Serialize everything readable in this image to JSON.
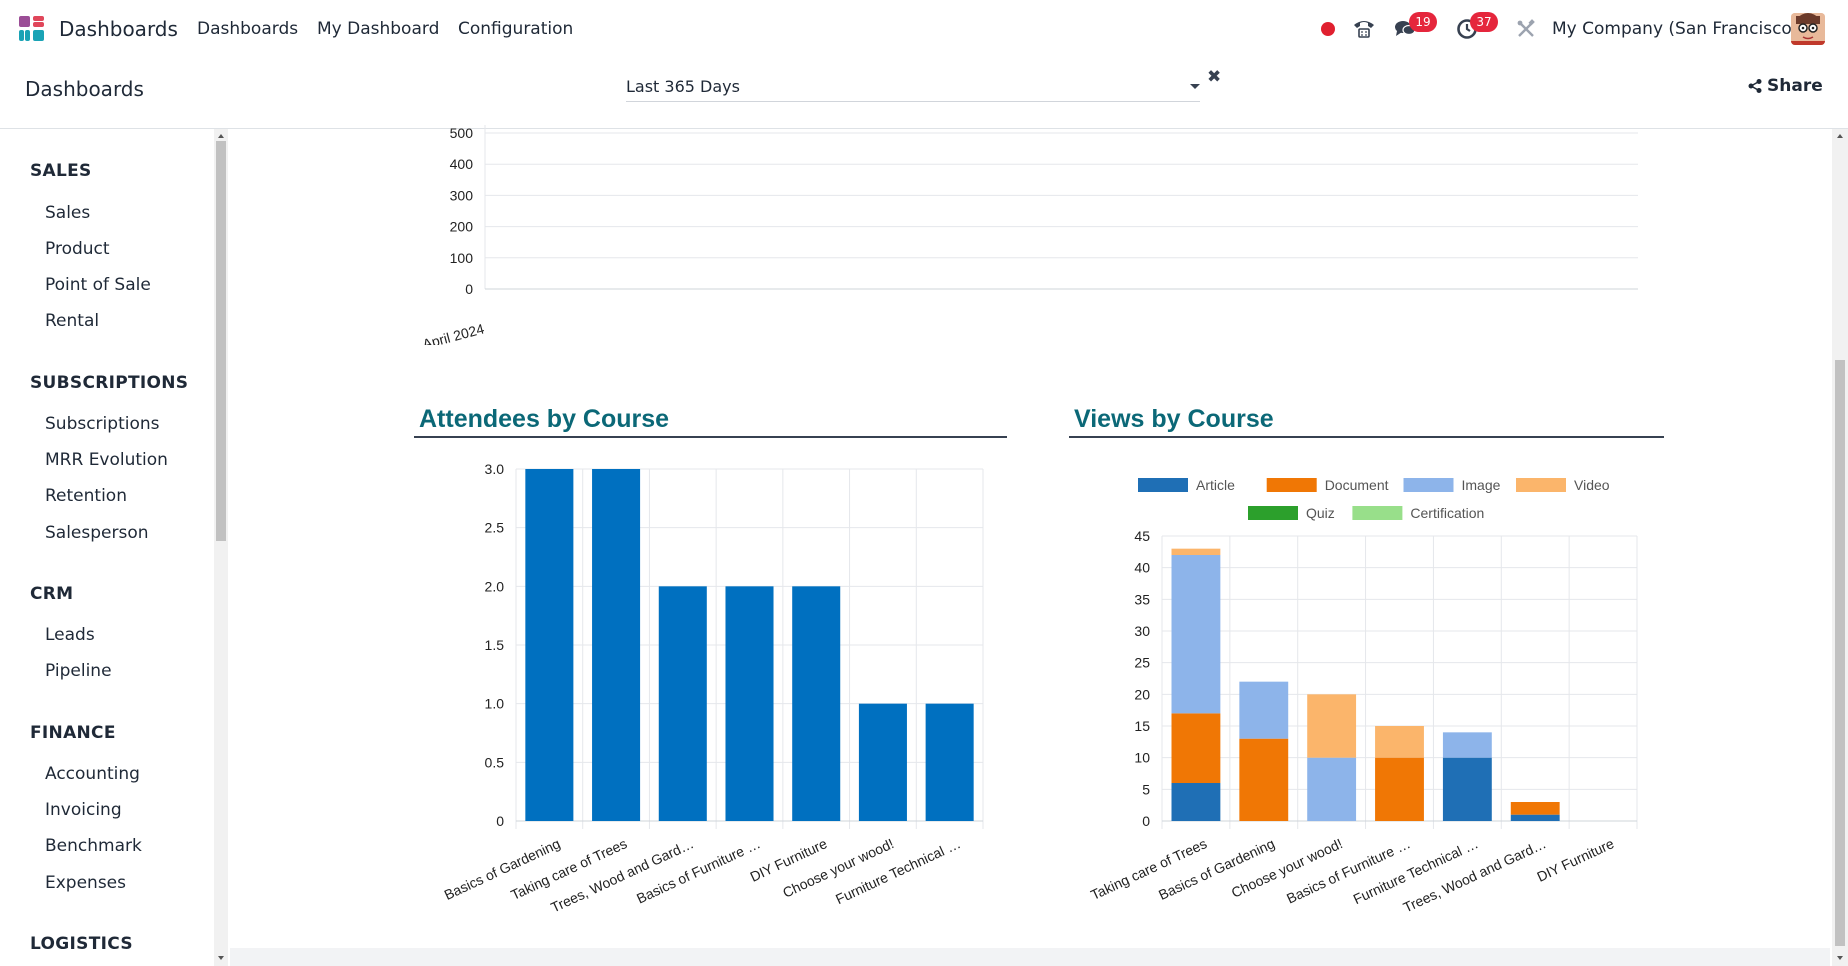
{
  "navbar": {
    "brand": "Dashboards",
    "menu": [
      "Dashboards",
      "My Dashboard",
      "Configuration"
    ],
    "messages_badge": "19",
    "activities_badge": "37",
    "company": "My Company (San Francisco)",
    "colors": {
      "badge": "#e5263c",
      "record": "#e0202f"
    }
  },
  "control_panel": {
    "title": "Dashboards",
    "filter_value": "Last 365 Days",
    "share_label": "Share"
  },
  "sidebar": {
    "sections": [
      {
        "title": "SALES",
        "items": [
          "Sales",
          "Product",
          "Point of Sale",
          "Rental"
        ]
      },
      {
        "title": "SUBSCRIPTIONS",
        "items": [
          "Subscriptions",
          "MRR Evolution",
          "Retention",
          "Salesperson"
        ]
      },
      {
        "title": "CRM",
        "items": [
          "Leads",
          "Pipeline"
        ]
      },
      {
        "title": "FINANCE",
        "items": [
          "Accounting",
          "Invoicing",
          "Benchmark",
          "Expenses"
        ]
      },
      {
        "title": "LOGISTICS",
        "items": []
      }
    ]
  },
  "chart_data": [
    {
      "type": "line",
      "title": "",
      "x": [
        "April 2024"
      ],
      "yticks": [
        "0",
        "100",
        "200",
        "300",
        "400",
        "500"
      ],
      "ylim": [
        0,
        500
      ],
      "series": [],
      "grid": true
    },
    {
      "type": "bar",
      "title": "Attendees by Course",
      "categories": [
        "Basics of Gardening",
        "Taking care of Trees",
        "Trees, Wood and Gard…",
        "Basics of Furniture …",
        "DIY Furniture",
        "Choose your wood!",
        "Furniture Technical …"
      ],
      "values": [
        3,
        3,
        2,
        2,
        2,
        1,
        1
      ],
      "yticks": [
        "0",
        "0.5",
        "1.0",
        "1.5",
        "2.0",
        "2.5",
        "3.0"
      ],
      "ylim": [
        0,
        3
      ],
      "color": "#0070c0",
      "grid": true
    },
    {
      "type": "bar",
      "stacked": true,
      "title": "Views by Course",
      "categories": [
        "Taking care of Trees",
        "Basics of Gardening",
        "Choose your wood!",
        "Basics of Furniture …",
        "Furniture Technical …",
        "Trees, Wood and Gard…",
        "DIY Furniture"
      ],
      "series": [
        {
          "name": "Article",
          "color": "#1f6fb5",
          "values": [
            6,
            0,
            0,
            0,
            10,
            1,
            0
          ]
        },
        {
          "name": "Document",
          "color": "#f07705",
          "values": [
            11,
            13,
            0,
            10,
            0,
            2,
            0
          ]
        },
        {
          "name": "Image",
          "color": "#8db4ea",
          "values": [
            25,
            9,
            10,
            0,
            4,
            0,
            0
          ]
        },
        {
          "name": "Video",
          "color": "#fbb56b",
          "values": [
            1,
            0,
            10,
            5,
            0,
            0,
            0
          ]
        },
        {
          "name": "Quiz",
          "color": "#2ca02c",
          "values": [
            0,
            0,
            0,
            0,
            0,
            0,
            0
          ]
        },
        {
          "name": "Certification",
          "color": "#98df8a",
          "values": [
            0,
            0,
            0,
            0,
            0,
            0,
            0
          ]
        }
      ],
      "yticks": [
        "0",
        "5",
        "10",
        "15",
        "20",
        "25",
        "30",
        "35",
        "40",
        "45"
      ],
      "ylim": [
        0,
        45
      ],
      "legend": "top",
      "grid": true
    }
  ]
}
